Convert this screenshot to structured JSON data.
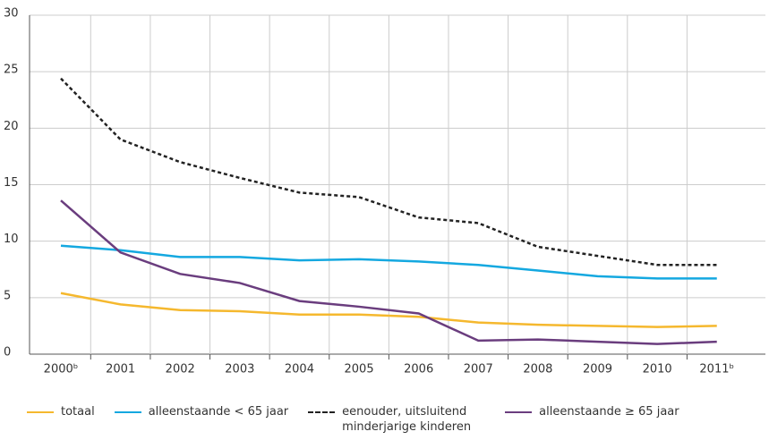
{
  "chart_data": {
    "type": "line",
    "categories": [
      "2000ᵇ",
      "2001",
      "2002",
      "2003",
      "2004",
      "2005",
      "2006",
      "2007",
      "2008",
      "2009",
      "2010",
      "2011ᵇ"
    ],
    "series": [
      {
        "name": "totaal",
        "color": "#f5b82e",
        "values": [
          5.4,
          4.4,
          3.9,
          3.8,
          3.5,
          3.5,
          3.3,
          2.8,
          2.6,
          2.5,
          2.4,
          2.5
        ]
      },
      {
        "name": "alleenstaande < 65 jaar",
        "color": "#14a8e0",
        "values": [
          9.6,
          9.2,
          8.6,
          8.6,
          8.3,
          8.4,
          8.2,
          7.9,
          7.4,
          6.9,
          6.7,
          6.7
        ]
      },
      {
        "name": "eenouder, uitsluitend minderjarige kinderen",
        "color": "#222222",
        "dash": true,
        "values": [
          24.4,
          19,
          17,
          15.6,
          14.3,
          13.9,
          12.1,
          11.6,
          9.5,
          8.7,
          7.9,
          7.9
        ]
      },
      {
        "name": "alleenstaande ≥ 65 jaar",
        "color": "#6a3d7e",
        "values": [
          13.6,
          9,
          7.1,
          6.3,
          4.7,
          4.2,
          3.6,
          1.2,
          1.3,
          1.1,
          0.9,
          1.1
        ]
      }
    ],
    "ylim": [
      0,
      30
    ],
    "yticks": [
      0,
      5,
      10,
      15,
      20,
      25,
      30
    ],
    "grid": true
  }
}
